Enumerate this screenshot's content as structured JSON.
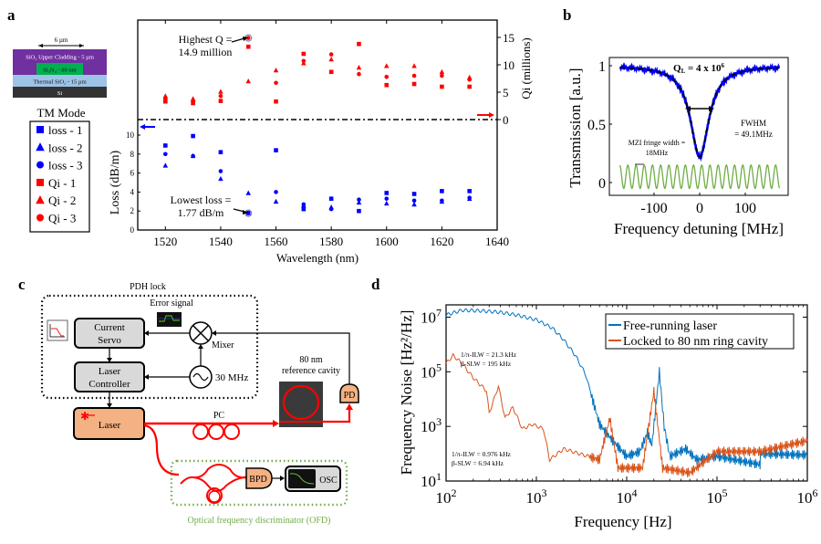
{
  "panels": {
    "a": "a",
    "b": "b",
    "c": "c",
    "d": "d"
  },
  "chart_data": [
    {
      "id": "a",
      "type": "scatter",
      "title": "",
      "xlabel": "Wavelength  (nm)",
      "ylabel_left": "Loss  (dB/m)",
      "ylabel_right": "Qi (millions)",
      "xlim": [
        1510,
        1640
      ],
      "xticks": [
        1520,
        1540,
        1560,
        1580,
        1600,
        1620,
        1640
      ],
      "qi_ylim": [
        0,
        17
      ],
      "qi_yticks": [
        0,
        5,
        10,
        15
      ],
      "loss_ylim": [
        0,
        11.5
      ],
      "loss_yticks": [
        0,
        2,
        4,
        6,
        8,
        10
      ],
      "grid": false,
      "legend_title": "TM Mode",
      "legend_placement": "left-outside",
      "x": [
        1520,
        1530,
        1540,
        1550,
        1560,
        1570,
        1580,
        1590,
        1600,
        1610,
        1620,
        1630
      ],
      "series": [
        {
          "name": "loss - 1",
          "group": "loss",
          "marker": "square",
          "color": "#0000ff",
          "values": [
            8.9,
            9.9,
            8.2,
            1.8,
            8.4,
            2.2,
            3.3,
            2.0,
            3.9,
            3.8,
            4.1,
            4.1
          ]
        },
        {
          "name": "loss - 2",
          "group": "loss",
          "marker": "triangle",
          "color": "#0000ff",
          "values": [
            6.8,
            7.8,
            5.4,
            3.9,
            3.0,
            2.6,
            2.4,
            2.9,
            2.8,
            2.7,
            3.0,
            3.3
          ]
        },
        {
          "name": "loss - 3",
          "group": "loss",
          "marker": "circle",
          "color": "#0000ff",
          "values": [
            8.0,
            7.8,
            6.2,
            1.77,
            4.0,
            2.7,
            2.2,
            3.2,
            3.3,
            3.1,
            3.1,
            3.4
          ]
        },
        {
          "name": "Qi - 1",
          "group": "qi",
          "marker": "square",
          "color": "#ff0000",
          "values": [
            3.3,
            3.0,
            3.4,
            13.3,
            3.3,
            12.0,
            8.7,
            13.8,
            6.3,
            6.5,
            6.0,
            6.0
          ]
        },
        {
          "name": "Qi - 2",
          "group": "qi",
          "marker": "triangle",
          "color": "#ff0000",
          "values": [
            4.3,
            3.8,
            5.1,
            7.0,
            9.0,
            10.3,
            11.0,
            9.5,
            9.8,
            9.8,
            8.7,
            7.7
          ]
        },
        {
          "name": "Qi - 3",
          "group": "qi",
          "marker": "circle",
          "color": "#ff0000",
          "values": [
            3.8,
            3.3,
            4.3,
            14.9,
            6.7,
            10.7,
            11.9,
            8.3,
            7.8,
            8.0,
            8.0,
            7.3
          ]
        }
      ],
      "annotations": [
        {
          "text": [
            "Highest Q =",
            "14.9 million"
          ],
          "x": 1550,
          "y": 14.9,
          "axis": "qi"
        },
        {
          "text": [
            "Lowest loss =",
            "1.77 dB/m"
          ],
          "x": 1550,
          "y": 1.77,
          "axis": "loss"
        }
      ],
      "stack_diagram": {
        "width_label": "6 µm",
        "layers": [
          {
            "label": "SiO₂ Upper Cladding - 5 µm",
            "color": "#7030a0"
          },
          {
            "label": "Si₃N₄ - 80 nm",
            "color": "#00b050"
          },
          {
            "label": "Thermal SiO₂ - 15 µm",
            "color": "#9dc3e6"
          },
          {
            "label": "Si",
            "color": "#333333"
          }
        ]
      }
    },
    {
      "id": "b",
      "type": "line",
      "title": "",
      "xlabel": "Frequency detuning [MHz]",
      "ylabel": "Transmission [a.u.]",
      "xlim": [
        -175,
        175
      ],
      "xticks": [
        -100,
        0,
        100
      ],
      "ylim": [
        -0.1,
        1.07
      ],
      "yticks": [
        0,
        0.5,
        1
      ],
      "yticklabels": [
        "0",
        "0.5",
        "1"
      ],
      "grid": false,
      "series": [
        {
          "name": "measured transmission",
          "color": "#0000ff",
          "model": "lorentzian",
          "center": 0,
          "fwhm": 49.1,
          "min": 0.22
        },
        {
          "name": "lorentzian fit",
          "color": "#000000",
          "style": "dashed",
          "center": 0,
          "fwhm": 49.1,
          "min": 0.22
        },
        {
          "name": "MZI fringes",
          "color": "#70ad47",
          "period": 18,
          "offset": 0.05,
          "amplitude": 0.1
        }
      ],
      "annotations": {
        "ql": "Q",
        "ql_sub": "L",
        "ql_value": " = 4 x 10",
        "ql_exp": "6",
        "fwhm_line1": "FWHM",
        "fwhm_line2": "= 49.1MHz",
        "mzi_line1": "MZI fringe width =",
        "mzi_line2": "18MHz"
      }
    },
    {
      "id": "d",
      "type": "line",
      "title": "",
      "xlabel": "Frequency [Hz]",
      "ylabel": "Frequency Noise [Hz²/Hz]",
      "xscale": "log",
      "yscale": "log",
      "xlim": [
        100,
        1000000
      ],
      "ylim": [
        10,
        10000000
      ],
      "xtick_exponents": [
        2,
        3,
        4,
        5,
        6
      ],
      "ytick_exponents": [
        1,
        3,
        5,
        7
      ],
      "grid": false,
      "legend_placement": "top-right",
      "series": [
        {
          "name": "Free-running laser",
          "color": "#0072bd",
          "points": [
            [
              100,
              12000000.0
            ],
            [
              150,
              18000000.0
            ],
            [
              250,
              17000000.0
            ],
            [
              400,
              15000000.0
            ],
            [
              600,
              12000000.0
            ],
            [
              1000,
              8000000.0
            ],
            [
              1500,
              4000000.0
            ],
            [
              2000,
              1500000.0
            ],
            [
              2700,
              400000.0
            ],
            [
              3500,
              80000.0
            ],
            [
              5000,
              1200.0
            ],
            [
              7000,
              300.0
            ],
            [
              10000,
              80.0
            ],
            [
              14000,
              120.0
            ],
            [
              17000,
              600.0
            ],
            [
              19000,
              200.0
            ],
            [
              23000,
              100000.0
            ],
            [
              26000,
              1000.0
            ],
            [
              30000,
              80.0
            ],
            [
              45000,
              150.0
            ],
            [
              60000,
              60.0
            ],
            [
              100000,
              80.0
            ],
            [
              300000,
              40.0
            ],
            [
              301000,
              100.0
            ],
            [
              1000000,
              90.0
            ]
          ]
        },
        {
          "name": "Locked to 80 nm ring cavity",
          "color": "#d95319",
          "points": [
            [
              100,
              200000.0
            ],
            [
              120,
              400000.0
            ],
            [
              150,
              200000.0
            ],
            [
              200,
              60000.0
            ],
            [
              280,
              20000.0
            ],
            [
              300,
              3000.0
            ],
            [
              380,
              30000.0
            ],
            [
              450,
              2000.0
            ],
            [
              550,
              5000.0
            ],
            [
              700,
              800.0
            ],
            [
              900,
              1200.0
            ],
            [
              1200,
              800.0
            ],
            [
              1400,
              60.0
            ],
            [
              2000,
              150.0
            ],
            [
              3000,
              100.0
            ],
            [
              5000,
              60.0
            ],
            [
              6500,
              2000.0
            ],
            [
              8000,
              30.0
            ],
            [
              15000,
              30.0
            ],
            [
              20000,
              20000.0
            ],
            [
              25000,
              30.0
            ],
            [
              50000,
              20.0
            ],
            [
              100000,
              120.0
            ],
            [
              300000,
              120.0
            ],
            [
              1000000,
              300.0
            ]
          ]
        }
      ],
      "annotations": [
        {
          "line1": "1/π-ILW = 21.3 kHz",
          "line2": "β-SLW = 195 kHz"
        },
        {
          "line1": "1/π-ILW = 0.976 kHz",
          "line2": "β-SLW = 6.94 kHz"
        }
      ]
    }
  ],
  "diagram_c": {
    "pdh_lock": "PDH lock",
    "error_signal": "Error signal",
    "current_servo_1": "Current",
    "current_servo_2": "Servo",
    "laser_controller_1": "Laser",
    "laser_controller_2": "Controller",
    "mixer": "Mixer",
    "oscillator": "30 MHz",
    "laser": "Laser",
    "pc": "PC",
    "cavity_1": "80 nm",
    "cavity_2": "reference cavity",
    "pd": "PD",
    "bpd": "BPD",
    "osc": "OSC",
    "ofd": "Optical frequency discriminator (OFD)"
  }
}
